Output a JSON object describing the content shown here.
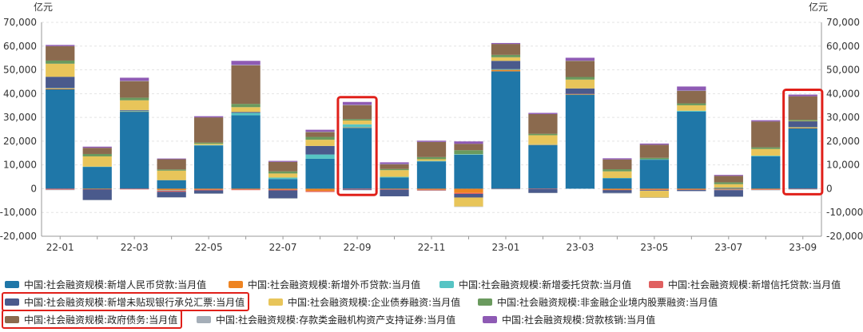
{
  "chart_data": {
    "type": "bar",
    "stacked": true,
    "unit_left": "亿元",
    "unit_right": "亿元",
    "ylim": [
      -20000,
      70000
    ],
    "yticks": [
      -20000,
      -10000,
      0,
      10000,
      20000,
      30000,
      40000,
      50000,
      60000,
      70000
    ],
    "ytick_labels": [
      "-20,000",
      "-10,000",
      "0",
      "10,000",
      "20,000",
      "30,000",
      "40,000",
      "50,000",
      "60,000",
      "70,000"
    ],
    "categories": [
      "22-01",
      "22-02",
      "22-03",
      "22-04",
      "22-05",
      "22-06",
      "22-07",
      "22-08",
      "22-09",
      "22-10",
      "22-11",
      "22-12",
      "23-01",
      "23-02",
      "23-03",
      "23-04",
      "23-05",
      "23-06",
      "23-07",
      "23-08",
      "23-09"
    ],
    "xtick_labels": [
      "22-01",
      "22-03",
      "22-05",
      "22-07",
      "22-09",
      "22-11",
      "23-01",
      "23-03",
      "23-05",
      "23-07",
      "23-09"
    ],
    "highlighted_categories": [
      "22-09",
      "23-09"
    ],
    "series": [
      {
        "name": "中国:社会融资规模:新增人民币贷款:当月值",
        "color": "#1f77a8",
        "values": [
          41800,
          9200,
          32400,
          3600,
          18200,
          30900,
          4100,
          12600,
          25600,
          4700,
          11500,
          14300,
          49400,
          18300,
          39500,
          4400,
          12200,
          32400,
          400,
          13600,
          25400
        ]
      },
      {
        "name": "中国:社会融资规模:新增外币贷款:当月值",
        "color": "#ee8422",
        "values": [
          400,
          -200,
          100,
          -600,
          -400,
          -300,
          -400,
          -1000,
          200,
          -200,
          -400,
          -1800,
          600,
          200,
          100,
          -500,
          -400,
          -400,
          -300,
          -300,
          400
        ]
      },
      {
        "name": "中国:社会融资规模:新增委托贷款:当月值",
        "color": "#56c4c4",
        "values": [
          200,
          100,
          300,
          -200,
          200,
          1000,
          600,
          1800,
          1300,
          300,
          200,
          200,
          300,
          200,
          200,
          100,
          200,
          400,
          -100,
          300,
          200
        ]
      },
      {
        "name": "中国:社会融资规模:新增信托贷款:当月值",
        "color": "#e06060",
        "values": [
          -400,
          -100,
          -300,
          -500,
          -300,
          -300,
          -300,
          -400,
          -300,
          -200,
          -300,
          -400,
          -100,
          -200,
          100,
          -100,
          -200,
          -100,
          -200,
          -200,
          -200
        ]
      },
      {
        "name": "中国:社会融资规模:新增未贴现银行承兑汇票:当月值",
        "color": "#4a5a8c",
        "values": [
          4700,
          -4400,
          300,
          -2300,
          -1300,
          400,
          -3300,
          3600,
          -300,
          -2800,
          0,
          -1500,
          3500,
          -1500,
          2300,
          -1200,
          -300,
          -500,
          -2700,
          0,
          2400
        ]
      },
      {
        "name": "中国:社会融资规模:企业债券融资:当月值",
        "color": "#e8c55a",
        "values": [
          5500,
          4300,
          4100,
          4000,
          500,
          2000,
          1700,
          2600,
          1600,
          2800,
          700,
          -3800,
          1500,
          3800,
          3700,
          2800,
          -2800,
          2300,
          1500,
          2800,
          100
        ]
      },
      {
        "name": "中国:社会融资规模:非金融企业境内股票融资:当月值",
        "color": "#6a9a5e",
        "values": [
          1300,
          1000,
          1100,
          500,
          500,
          1400,
          900,
          1200,
          600,
          500,
          900,
          1700,
          1000,
          600,
          1100,
          900,
          600,
          800,
          800,
          700,
          500
        ]
      },
      {
        "name": "中国:社会融资规模:政府债务:当月值",
        "color": "#8b6a4e",
        "values": [
          6100,
          2600,
          7000,
          4300,
          10600,
          16200,
          4000,
          2000,
          5900,
          2000,
          6400,
          2700,
          4600,
          8300,
          6800,
          4100,
          5500,
          5300,
          2700,
          10900,
          9900
        ]
      },
      {
        "name": "中国:社会融资规模:存款类金融机构资产支持证券:当月值",
        "color": "#a5aeb8",
        "values": [
          -200,
          -100,
          100,
          -100,
          -100,
          200,
          -200,
          200,
          100,
          100,
          -100,
          -100,
          -100,
          -100,
          100,
          -200,
          -100,
          100,
          -200,
          -100,
          -100
        ]
      },
      {
        "name": "中国:社会融资规模:贷款核销:当月值",
        "color": "#8e5ab4",
        "values": [
          500,
          500,
          1300,
          300,
          500,
          1700,
          400,
          800,
          1200,
          700,
          500,
          1000,
          400,
          500,
          1200,
          500,
          500,
          1700,
          400,
          500,
          700
        ]
      }
    ],
    "highlighted_legend_entries": [
      "中国:社会融资规模:新增未贴现银行承兑汇票:当月值",
      "中国:社会融资规模:政府债务:当月值"
    ],
    "colors": {
      "highlight": "#e0201a",
      "grid": "#e3e3e3",
      "axis": "#999999"
    }
  }
}
